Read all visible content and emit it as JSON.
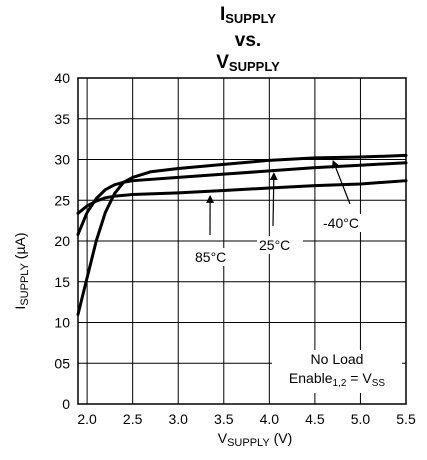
{
  "chart_data": {
    "type": "line",
    "title_main": "I",
    "title_main_sub": "SUPPLY",
    "title_vs": "vs.",
    "title_second": "V",
    "title_second_sub": "SUPPLY",
    "ylabel_main": "I",
    "ylabel_sub": "SUPPLY",
    "ylabel_unit": " (µA)",
    "xlabel_main": "V",
    "xlabel_sub": "SUPPLY",
    "xlabel_unit": " (V)",
    "xlim": [
      1.9,
      5.5
    ],
    "ylim": [
      0,
      40
    ],
    "grid": true,
    "x_ticks": [
      "2.0",
      "2.5",
      "3.0",
      "3.5",
      "4.0",
      "4.5",
      "5.0",
      "5.5"
    ],
    "y_ticks": [
      "0",
      "05",
      "10",
      "15",
      "20",
      "25",
      "30",
      "35",
      "40"
    ],
    "series": [
      {
        "name": "-40°C",
        "x": [
          1.9,
          2.0,
          2.1,
          2.2,
          2.3,
          2.4,
          2.5,
          2.7,
          3.0,
          3.5,
          4.0,
          4.5,
          5.0,
          5.5
        ],
        "y": [
          11.0,
          15.5,
          20.0,
          23.5,
          25.8,
          27.2,
          27.8,
          28.5,
          28.9,
          29.4,
          29.9,
          30.2,
          30.3,
          30.5
        ]
      },
      {
        "name": "25°C",
        "x": [
          1.9,
          2.0,
          2.1,
          2.2,
          2.3,
          2.4,
          2.5,
          3.0,
          3.5,
          4.0,
          4.5,
          5.0,
          5.5
        ],
        "y": [
          20.8,
          23.5,
          25.2,
          26.3,
          26.9,
          27.2,
          27.4,
          27.8,
          28.2,
          28.6,
          29.0,
          29.3,
          29.6
        ]
      },
      {
        "name": "85°C",
        "x": [
          1.9,
          2.0,
          2.1,
          2.2,
          2.3,
          2.5,
          3.0,
          3.5,
          4.0,
          4.5,
          5.0,
          5.5
        ],
        "y": [
          23.4,
          24.3,
          24.9,
          25.3,
          25.5,
          25.7,
          25.9,
          26.2,
          26.5,
          26.8,
          27.0,
          27.4
        ]
      }
    ],
    "annotations": [
      "85°C",
      "25°C",
      "-40°C"
    ],
    "note_line1": "No Load",
    "note_line2_main": "Enable",
    "note_line2_sub": "1,2",
    "note_line2_tail": " = V",
    "note_line2_tail_sub": "SS"
  }
}
